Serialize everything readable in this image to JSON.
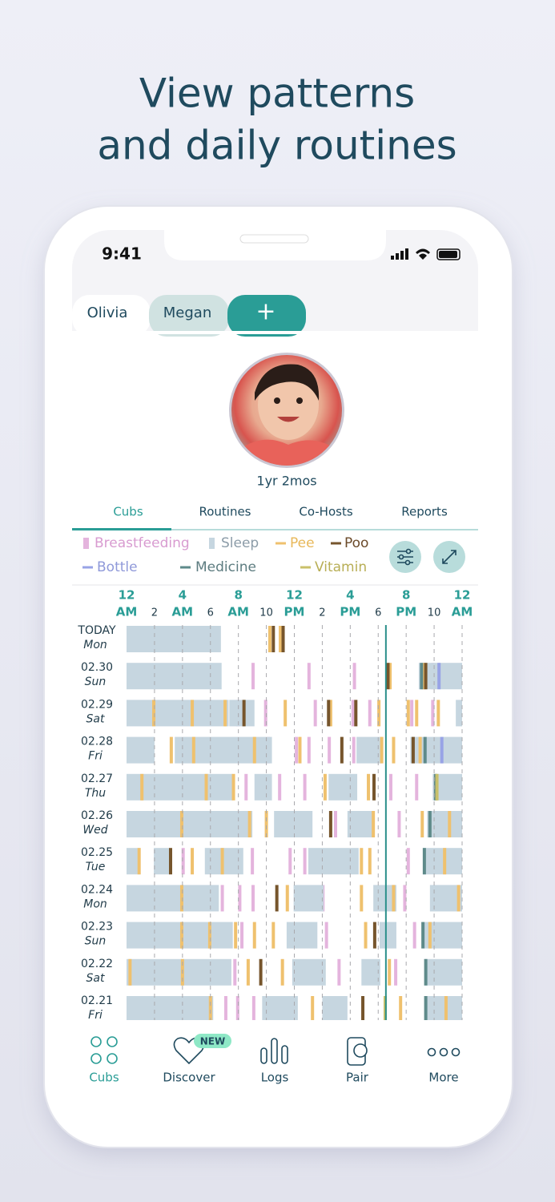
{
  "headline": [
    "View patterns",
    "and daily routines"
  ],
  "status_time": "9:41",
  "profile_tabs": [
    "Olivia",
    "Megan",
    "+"
  ],
  "age": "1yr 2mos",
  "sections": [
    "Cubs",
    "Routines",
    "Co-Hosts",
    "Reports"
  ],
  "legend": [
    {
      "label": "Breastfeeding",
      "color": "#e4b4dd",
      "text_color": "#d89bd0"
    },
    {
      "label": "Sleep",
      "color": "#c6d6e0",
      "text_color": "#8c9ca8"
    },
    {
      "label": "Pee",
      "color": "#efc16e",
      "text_color": "#e8b85a"
    },
    {
      "label": "Poo",
      "color": "#76552c",
      "text_color": "#6b4a2a"
    },
    {
      "label": "Bottle",
      "color": "#98a3e6",
      "text_color": "#8f99d9"
    },
    {
      "label": "Medicine",
      "color": "#5e8a8a",
      "text_color": "#5d7c80"
    },
    {
      "label": "Vitamin",
      "color": "#c9c06a",
      "text_color": "#b8ae55"
    }
  ],
  "timeline": {
    "hour_ticks": [
      {
        "hour": 0,
        "label": "12",
        "sub": "AM"
      },
      {
        "hour": 2,
        "label": "2"
      },
      {
        "hour": 4,
        "label": "4",
        "sub": "AM"
      },
      {
        "hour": 6,
        "label": "6"
      },
      {
        "hour": 8,
        "label": "8",
        "sub": "AM"
      },
      {
        "hour": 10,
        "label": "10"
      },
      {
        "hour": 12,
        "label": "12",
        "sub": "PM"
      },
      {
        "hour": 14,
        "label": "2"
      },
      {
        "hour": 16,
        "label": "4",
        "sub": "PM"
      },
      {
        "hour": 18,
        "label": "6"
      },
      {
        "hour": 20,
        "label": "8",
        "sub": "PM"
      },
      {
        "hour": 22,
        "label": "10"
      },
      {
        "hour": 24,
        "label": "12",
        "sub": "AM"
      }
    ],
    "now_hour": 18.55,
    "days": [
      {
        "date": "TODAY",
        "weekday": "Mon",
        "marks": [
          [],
          [
            [
              0,
              6.75
            ]
          ],
          [
            10.25,
            11.0
          ],
          [
            10.5,
            11.2
          ],
          [],
          [],
          []
        ]
      },
      {
        "date": "02.30",
        "weekday": "Sun",
        "marks": [
          [
            9.05,
            13.05,
            16.3,
            21.9
          ],
          [
            [
              0,
              6.8
            ],
            [
              20.9,
              24
            ]
          ],
          [
            18.85,
            21.25
          ],
          [
            18.7,
            21.4
          ],
          [
            22.35
          ],
          [
            21.1
          ],
          []
        ]
      },
      {
        "date": "02.29",
        "weekday": "Sat",
        "marks": [
          [
            7.95,
            9.95,
            13.5,
            16.2,
            17.4,
            20.4,
            21.9
          ],
          [
            [
              0,
              7.3
            ],
            [
              7.35,
              9.15
            ],
            [
              23.55,
              24
            ]
          ],
          [
            1.95,
            4.7,
            7.05,
            11.35,
            14.6,
            18.05,
            20.15,
            20.75,
            22.3
          ],
          [
            8.4,
            14.45,
            16.4
          ],
          [],
          [],
          []
        ]
      },
      {
        "date": "02.28",
        "weekday": "Fri",
        "marks": [
          [
            10.15,
            12.15,
            13.05,
            14.5,
            16.25
          ],
          [
            [
              0,
              2
            ],
            [
              3.45,
              10.4
            ],
            [
              16.45,
              18.25
            ],
            [
              20.3,
              24
            ]
          ],
          [
            3.2,
            4.8,
            9.15,
            12.4,
            18.25,
            19.1,
            21.0
          ],
          [
            15.4,
            20.5
          ],
          [
            22.55
          ],
          [
            21.35
          ],
          []
        ]
      },
      {
        "date": "02.27",
        "weekday": "Thu",
        "marks": [
          [
            8.55,
            10.95,
            12.75,
            18.9,
            20.75
          ],
          [
            [
              0,
              7.6
            ],
            [
              9.15,
              10.4
            ],
            [
              14.45,
              16.5
            ],
            [
              21.9,
              24
            ]
          ],
          [
            1.1,
            5.7,
            7.65,
            14.2,
            17.3
          ],
          [
            17.7
          ],
          [],
          [
            22.1
          ],
          [
            22.2
          ]
        ]
      },
      {
        "date": "02.26",
        "weekday": "Wed",
        "marks": [
          [
            14.95,
            19.5
          ],
          [
            [
              0,
              9.0
            ],
            [
              10.55,
              13.3
            ],
            [
              15.8,
              17.65
            ],
            [
              21.5,
              24
            ]
          ],
          [
            3.95,
            8.8,
            10.0,
            17.65,
            21.15,
            23.1
          ],
          [
            14.6
          ],
          [],
          [
            21.7
          ],
          []
        ]
      },
      {
        "date": "02.25",
        "weekday": "Tue",
        "marks": [
          [
            4.05,
            9.0,
            11.7,
            12.75,
            20.15
          ],
          [
            [
              0,
              1.0
            ],
            [
              1.95,
              3.1
            ],
            [
              5.6,
              8.35
            ],
            [
              13.0,
              16.6
            ],
            [
              21.2,
              24
            ]
          ],
          [
            0.9,
            4.7,
            6.85,
            16.8,
            17.4,
            22.75
          ],
          [
            3.15
          ],
          [],
          [
            21.3
          ],
          []
        ]
      },
      {
        "date": "02.24",
        "weekday": "Mon",
        "marks": [
          [
            6.85,
            8.1,
            9.05,
            14.05,
            19.9
          ],
          [
            [
              0,
              6.6
            ],
            [
              11.95,
              14.1
            ],
            [
              17.65,
              19.3
            ],
            [
              21.7,
              24
            ]
          ],
          [
            3.95,
            11.5,
            16.8,
            19.1,
            23.75
          ],
          [
            10.75
          ],
          [],
          [],
          []
        ]
      },
      {
        "date": "02.23",
        "weekday": "Sun",
        "marks": [
          [
            8.25,
            14.3,
            20.6
          ],
          [
            [
              0,
              7.6
            ],
            [
              11.45,
              13.65
            ],
            [
              18.1,
              19.3
            ],
            [
              21.3,
              24
            ]
          ],
          [
            3.95,
            5.95,
            7.8,
            9.15,
            10.5,
            17.1,
            21.7
          ],
          [
            17.75
          ],
          [],
          [
            21.2
          ],
          []
        ]
      },
      {
        "date": "02.22",
        "weekday": "Sat",
        "marks": [
          [
            7.75,
            15.2,
            19.25
          ],
          [
            [
              0,
              7.5
            ],
            [
              11.85,
              14.25
            ],
            [
              16.8,
              18.15
            ],
            [
              21.3,
              24
            ]
          ],
          [
            0.25,
            4.0,
            8.7,
            11.15,
            18.8
          ],
          [
            9.6
          ],
          [],
          [
            21.4
          ],
          []
        ]
      },
      {
        "date": "02.21",
        "weekday": "Fri",
        "marks": [
          [
            7.1,
            7.95,
            9.1
          ],
          [
            [
              0,
              6.2
            ],
            [
              9.7,
              12.25
            ],
            [
              14.0,
              15.8
            ],
            [
              21.3,
              24
            ]
          ],
          [
            6.0,
            13.3,
            19.6,
            22.85
          ],
          [
            16.9
          ],
          [],
          [
            21.4
          ],
          [
            18.5
          ]
        ]
      }
    ]
  },
  "nav": [
    {
      "label": "Cubs"
    },
    {
      "label": "Discover",
      "badge": "NEW"
    },
    {
      "label": "Logs"
    },
    {
      "label": "Pair"
    },
    {
      "label": "More"
    }
  ]
}
